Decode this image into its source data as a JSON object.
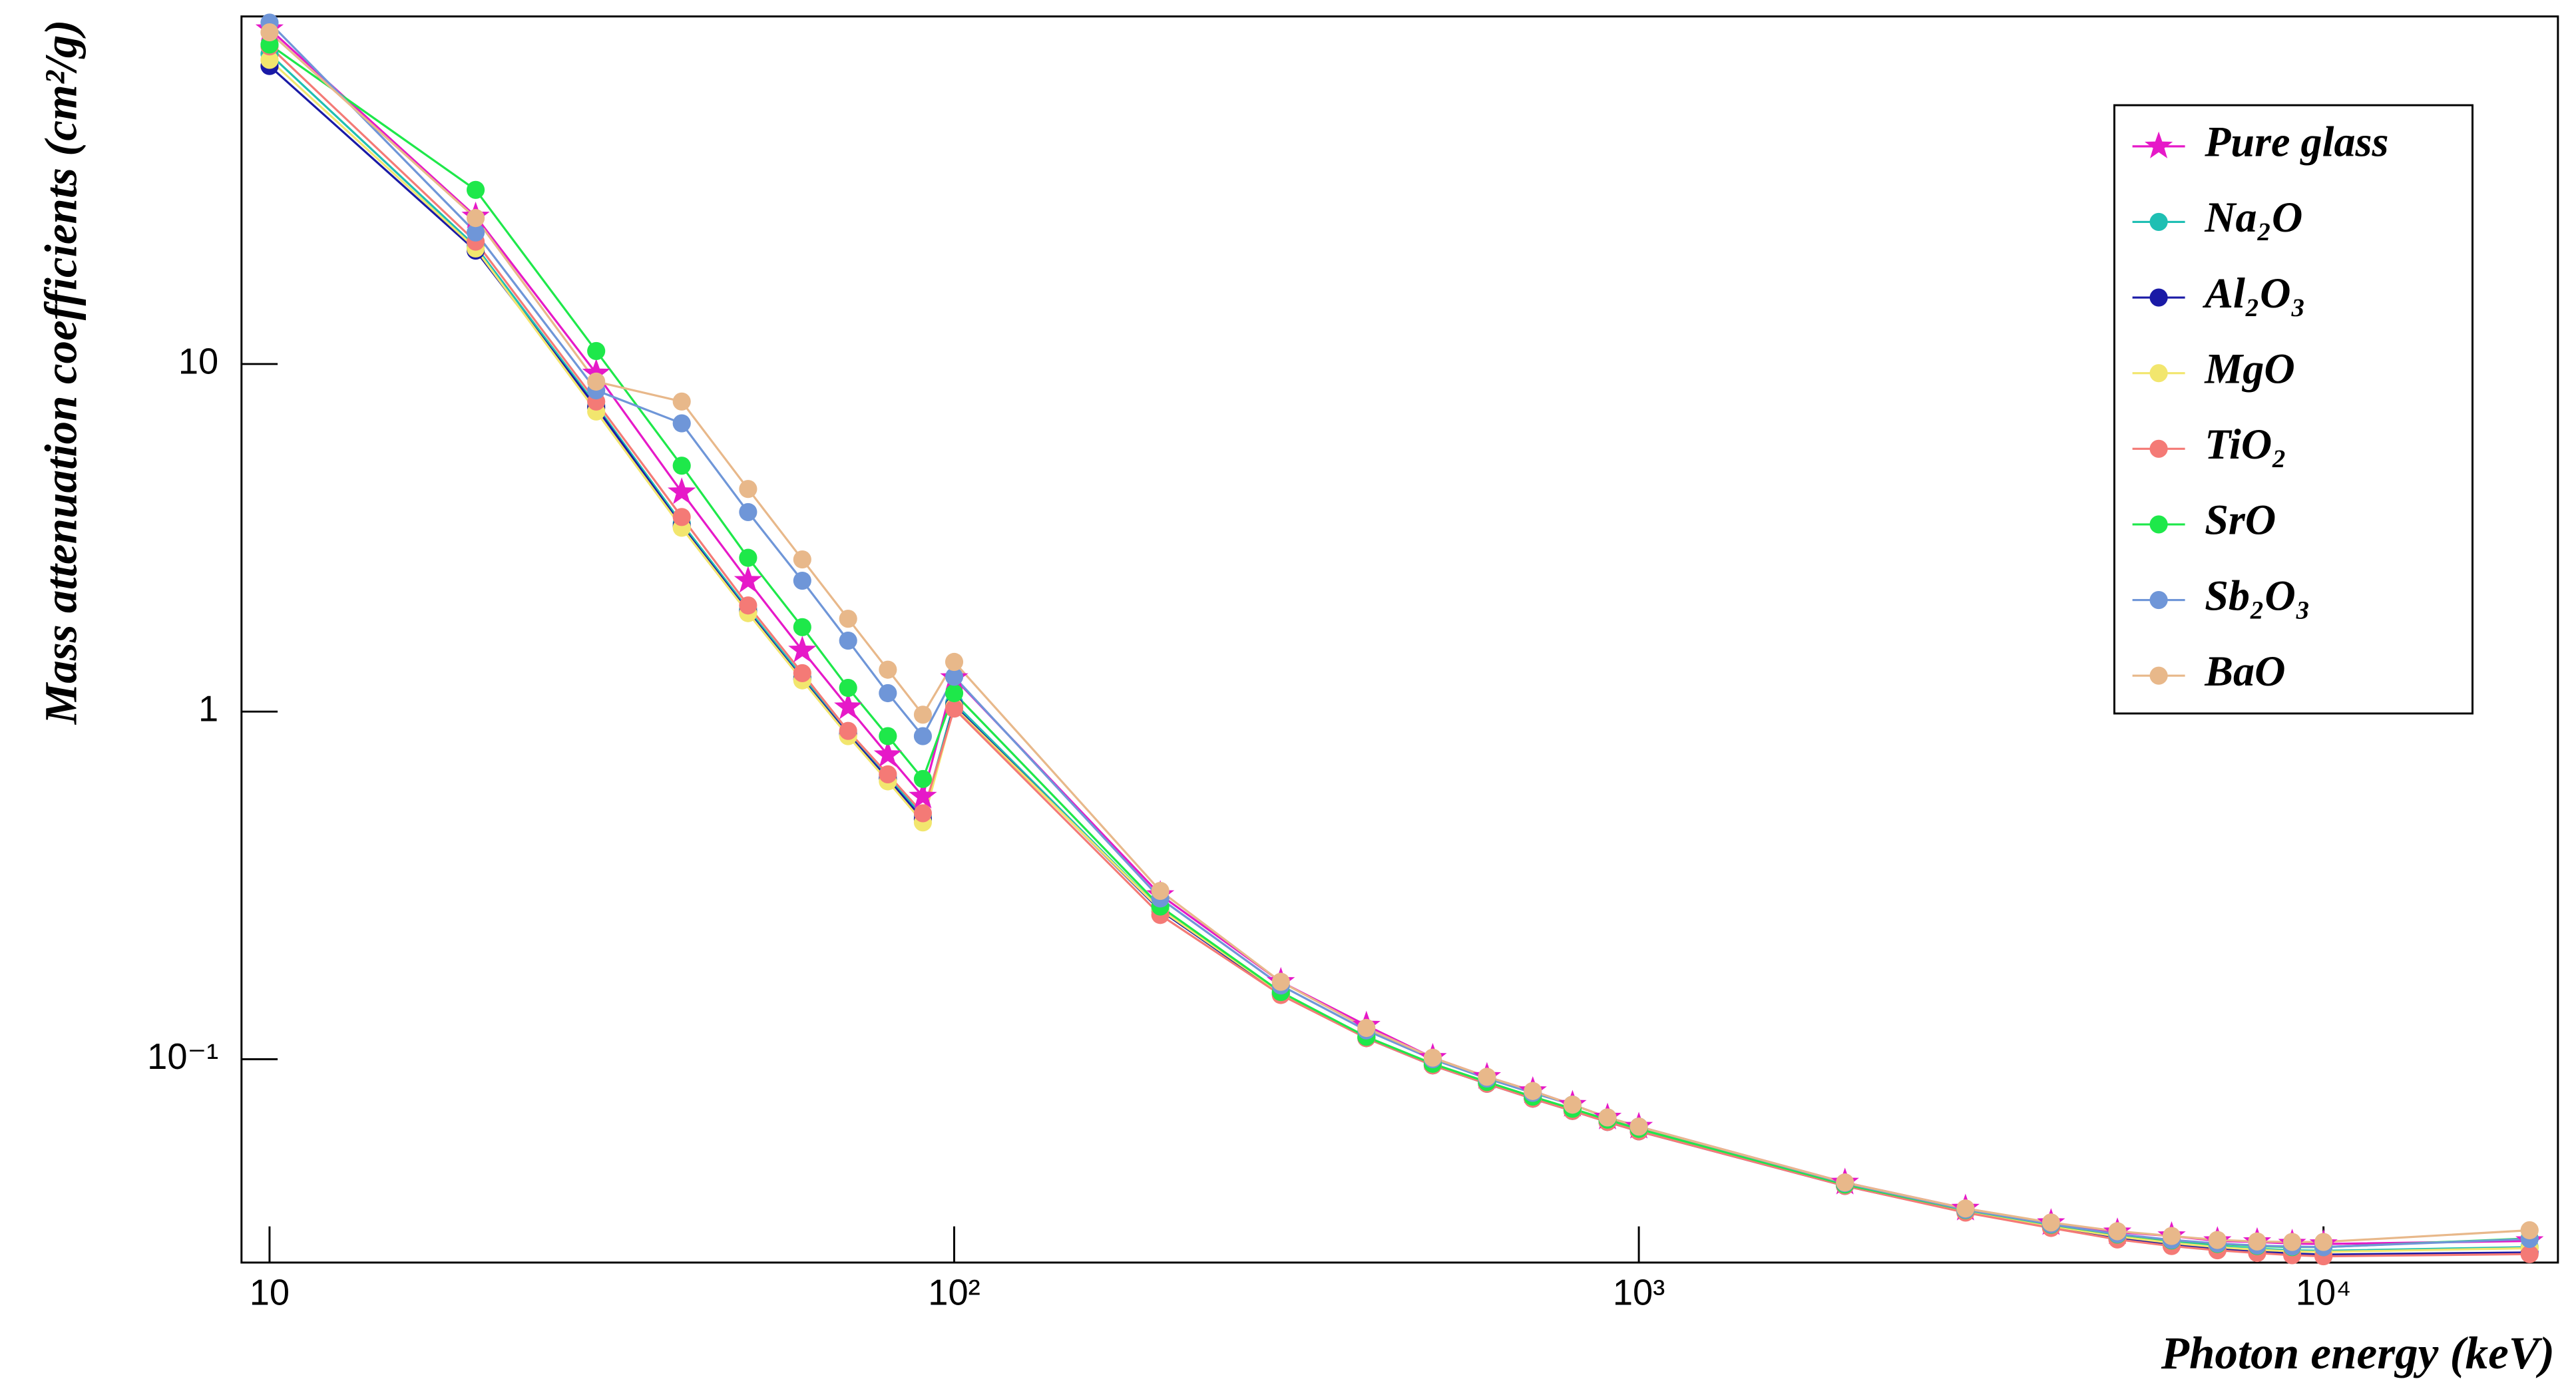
{
  "chart_data": {
    "type": "line",
    "x_label": "Photon energy (keV)",
    "y_label": "Mass attenuation coefficients (cm²/g)",
    "xscale": "log",
    "yscale": "log",
    "legend": "top-right",
    "xlim": [
      9.1,
      22000
    ],
    "ylim": [
      0.026,
      100
    ],
    "xticks": [
      10,
      {
        "value": 100,
        "label": "10²"
      },
      {
        "value": 1000,
        "label": "10³"
      },
      {
        "value": 10000,
        "label": "10⁴"
      }
    ],
    "yticks": [
      {
        "value": 0.1,
        "label": "10⁻¹"
      },
      1,
      10
    ],
    "x": [
      10,
      20,
      30,
      40,
      50,
      60,
      70,
      80,
      90,
      100,
      200,
      300,
      400,
      500,
      600,
      700,
      800,
      900,
      1000,
      2000,
      3000,
      4000,
      5000,
      6000,
      7000,
      8000,
      9000,
      10000,
      20000
    ],
    "series": [
      {
        "name": "Pure glass",
        "color": "#e619c8",
        "marker": "star",
        "values": [
          92,
          26.6,
          9.4,
          4.28,
          2.38,
          1.5,
          1.03,
          0.75,
          0.57,
          1.25,
          0.297,
          0.167,
          0.125,
          0.101,
          0.089,
          0.081,
          0.074,
          0.068,
          0.064,
          0.0442,
          0.0372,
          0.0338,
          0.0318,
          0.031,
          0.03,
          0.0298,
          0.0295,
          0.0294,
          0.03
        ]
      },
      {
        "name": "Na₂O",
        "color": "#1fbfb3",
        "marker": "circle",
        "values": [
          78,
          21.8,
          7.6,
          3.48,
          1.97,
          1.26,
          0.87,
          0.65,
          0.5,
          1.06,
          0.27,
          0.155,
          0.116,
          0.097,
          0.086,
          0.078,
          0.072,
          0.067,
          0.063,
          0.0435,
          0.0366,
          0.0332,
          0.031,
          0.0298,
          0.029,
          0.0285,
          0.0282,
          0.0281,
          0.0288
        ]
      },
      {
        "name": "Al₂O₃",
        "color": "#1a1aa6",
        "marker": "circle",
        "values": [
          72,
          21.2,
          7.5,
          3.42,
          1.94,
          1.24,
          0.86,
          0.64,
          0.49,
          1.04,
          0.268,
          0.154,
          0.115,
          0.096,
          0.085,
          0.077,
          0.071,
          0.066,
          0.062,
          0.0432,
          0.0363,
          0.0329,
          0.0306,
          0.0293,
          0.0285,
          0.028,
          0.0276,
          0.0274,
          0.0278
        ]
      },
      {
        "name": "MgO",
        "color": "#f2e66e",
        "marker": "circle",
        "values": [
          75,
          21.5,
          7.3,
          3.38,
          1.92,
          1.23,
          0.85,
          0.63,
          0.48,
          1.03,
          0.27,
          0.155,
          0.116,
          0.097,
          0.086,
          0.078,
          0.072,
          0.067,
          0.063,
          0.0434,
          0.0365,
          0.0331,
          0.0309,
          0.0296,
          0.0288,
          0.0283,
          0.028,
          0.0279,
          0.0286
        ]
      },
      {
        "name": "TiO₂",
        "color": "#f47a76",
        "marker": "circle",
        "values": [
          82,
          22.5,
          7.8,
          3.63,
          2.02,
          1.29,
          0.88,
          0.66,
          0.51,
          1.02,
          0.26,
          0.153,
          0.115,
          0.096,
          0.085,
          0.077,
          0.071,
          0.066,
          0.062,
          0.0432,
          0.0362,
          0.0327,
          0.0303,
          0.029,
          0.0282,
          0.0277,
          0.0273,
          0.0271,
          0.0275
        ]
      },
      {
        "name": "SrO",
        "color": "#1ee84a",
        "marker": "circle",
        "values": [
          83,
          31.7,
          10.9,
          5.1,
          2.77,
          1.75,
          1.17,
          0.85,
          0.64,
          1.13,
          0.275,
          0.156,
          0.116,
          0.097,
          0.086,
          0.078,
          0.072,
          0.067,
          0.063,
          0.0436,
          0.0368,
          0.0334,
          0.0313,
          0.0301,
          0.0294,
          0.029,
          0.0288,
          0.0288,
          0.0305
        ]
      },
      {
        "name": "Sb₂O₃",
        "color": "#6f96d8",
        "marker": "circle",
        "values": [
          96,
          23.9,
          8.4,
          6.75,
          3.75,
          2.38,
          1.6,
          1.13,
          0.85,
          1.26,
          0.29,
          0.163,
          0.121,
          0.1,
          0.088,
          0.08,
          0.074,
          0.068,
          0.064,
          0.044,
          0.0369,
          0.0335,
          0.0314,
          0.0302,
          0.0295,
          0.0291,
          0.0289,
          0.0288,
          0.0304
        ]
      },
      {
        "name": "BaO",
        "color": "#e8b88a",
        "marker": "circle",
        "values": [
          90,
          26.3,
          8.9,
          7.8,
          4.37,
          2.74,
          1.85,
          1.32,
          0.98,
          1.39,
          0.305,
          0.167,
          0.123,
          0.101,
          0.089,
          0.081,
          0.074,
          0.068,
          0.064,
          0.0442,
          0.0372,
          0.0339,
          0.032,
          0.031,
          0.0302,
          0.0299,
          0.0298,
          0.0298,
          0.0322
        ]
      }
    ]
  }
}
